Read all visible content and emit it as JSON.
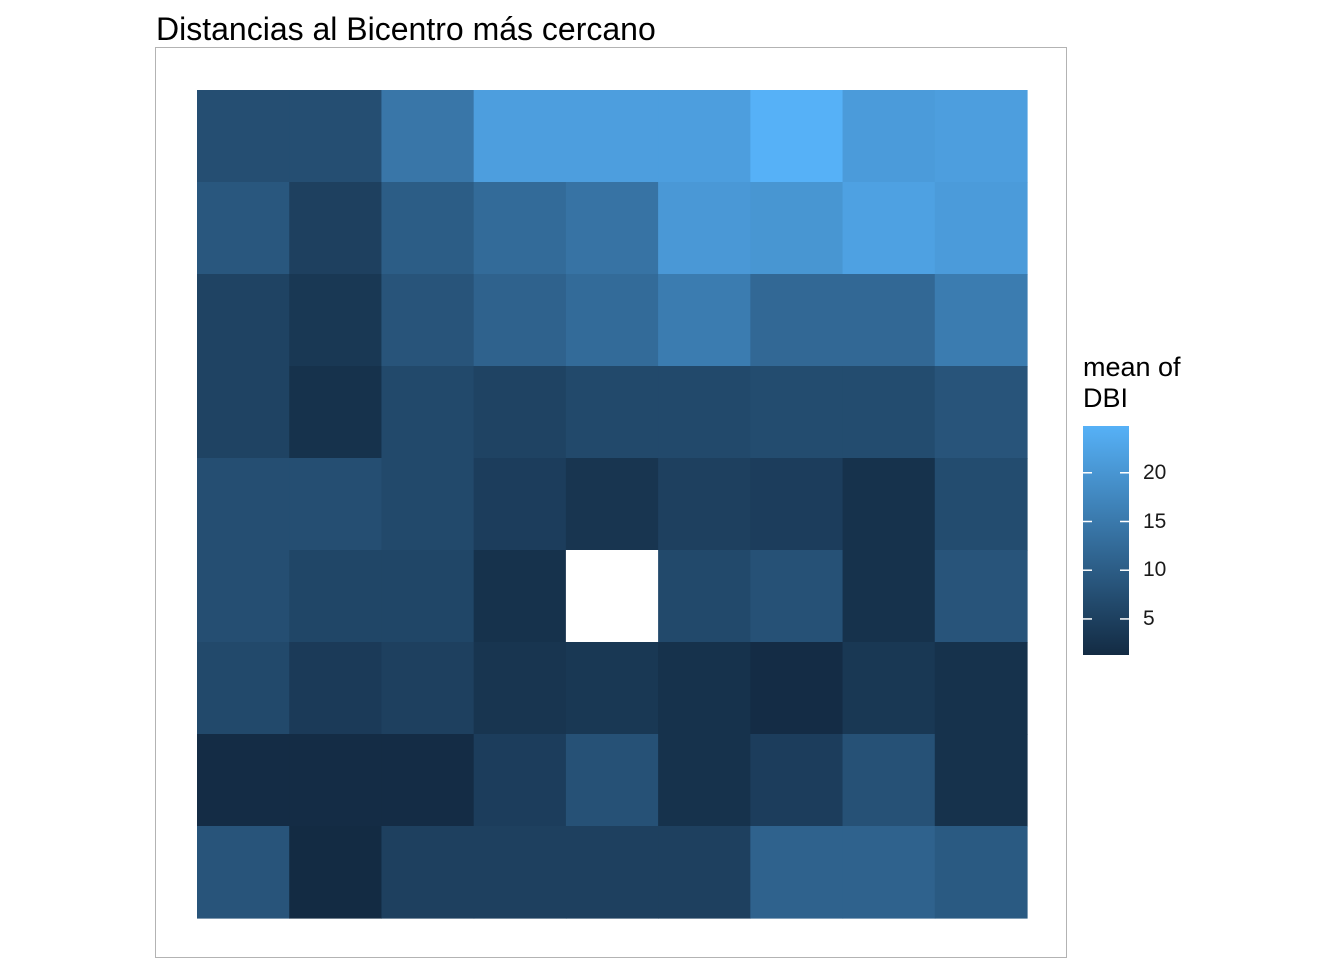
{
  "title": "Distancias al Bicentro más cercano",
  "legend": {
    "title_line1": "mean of",
    "title_line2": "DBI",
    "ticks": [
      {
        "value": 5,
        "label": "5"
      },
      {
        "value": 10,
        "label": "10"
      },
      {
        "value": 15,
        "label": "15"
      },
      {
        "value": 20,
        "label": "20"
      }
    ]
  },
  "colors": {
    "low": "#132B43",
    "high": "#56B1F7",
    "missing": "#FFFFFF",
    "panel_border": "#B3B3B3"
  },
  "chart_data": {
    "type": "heatmap",
    "title": "Distancias al Bicentro más cercano",
    "legend_title": "mean of DBI",
    "legend_position": "right",
    "color_range": [
      1.3,
      24.8
    ],
    "grid": false,
    "rows": 9,
    "cols": 9,
    "values": [
      [
        7.5,
        7.5,
        14.5,
        21.5,
        21.5,
        21.5,
        24.8,
        21.0,
        21.5
      ],
      [
        9.0,
        5.0,
        10.0,
        12.5,
        14.0,
        20.5,
        20.0,
        22.0,
        21.0
      ],
      [
        5.5,
        3.5,
        8.5,
        11.0,
        12.5,
        15.5,
        12.0,
        12.0,
        15.5
      ],
      [
        5.5,
        2.5,
        6.5,
        5.5,
        6.5,
        6.5,
        7.0,
        7.0,
        8.5
      ],
      [
        7.5,
        7.5,
        6.5,
        4.5,
        3.0,
        5.0,
        4.5,
        2.5,
        7.0
      ],
      [
        7.5,
        6.0,
        6.0,
        2.5,
        null,
        6.5,
        8.0,
        2.5,
        8.5
      ],
      [
        6.5,
        4.0,
        5.0,
        3.0,
        3.5,
        2.5,
        1.5,
        3.5,
        2.5
      ],
      [
        1.5,
        1.5,
        1.5,
        4.5,
        8.0,
        2.5,
        4.5,
        8.0,
        2.5
      ],
      [
        8.5,
        1.3,
        5.0,
        5.0,
        5.0,
        5.0,
        11.0,
        11.0,
        9.5
      ]
    ]
  }
}
